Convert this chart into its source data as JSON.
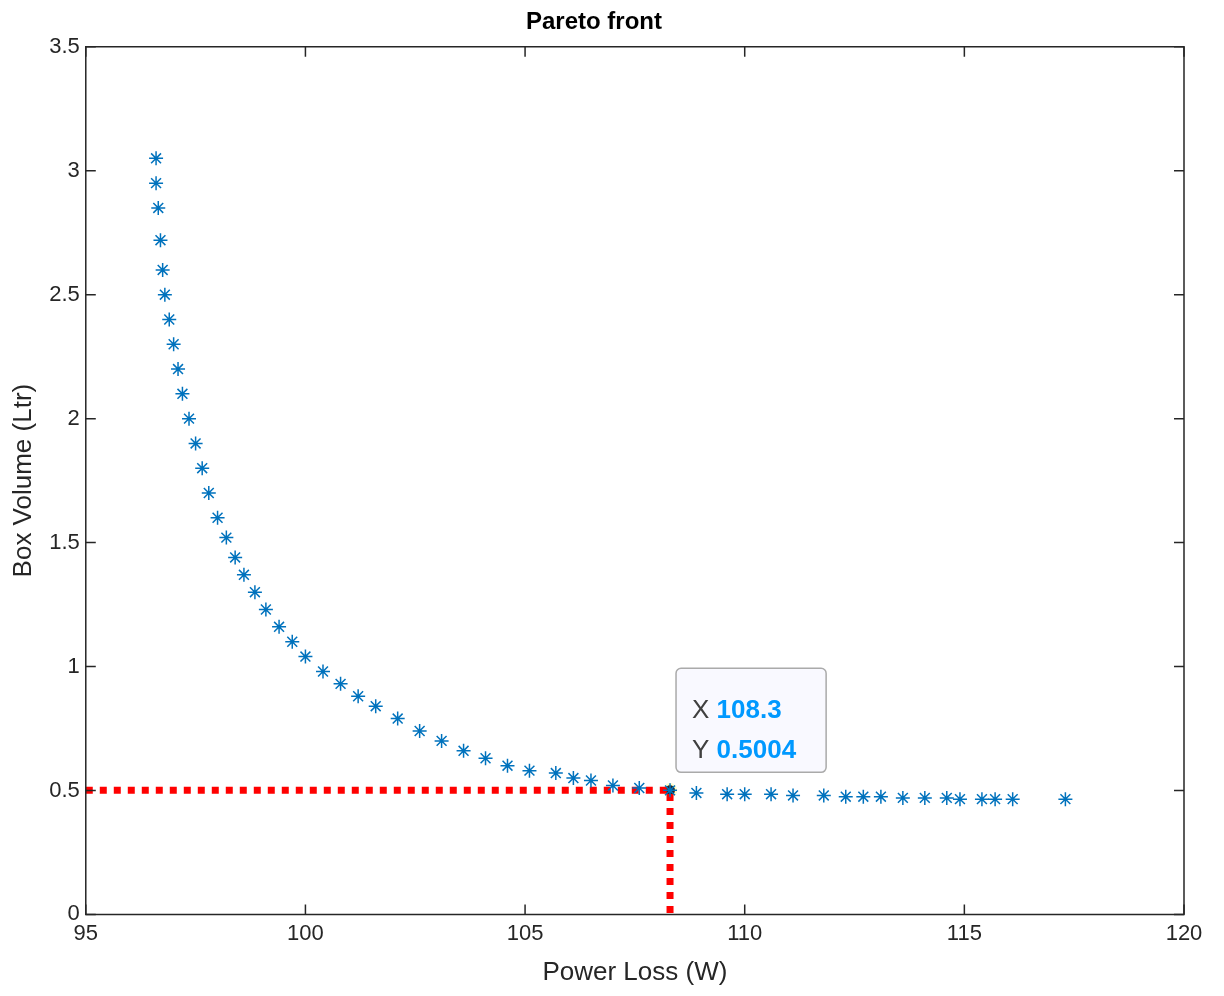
{
  "chart_data": {
    "type": "scatter",
    "title": "Pareto front",
    "xlabel": "Power Loss (W)",
    "ylabel": "Box Volume (Ltr)",
    "xlim": [
      95,
      120
    ],
    "xticks": [
      95,
      100,
      105,
      110,
      115,
      120
    ],
    "ylim": [
      0,
      3.5
    ],
    "yticks": [
      0,
      0.5,
      1,
      1.5,
      2,
      2.5,
      3,
      3.5
    ],
    "grid": false,
    "legend": false,
    "marker": "cross",
    "series": [
      {
        "color": "#0072bd",
        "x": [
          96.6,
          96.6,
          96.65,
          96.7,
          96.75,
          96.8,
          96.9,
          97.0,
          97.1,
          97.2,
          97.35,
          97.5,
          97.65,
          97.8,
          98.0,
          98.2,
          98.4,
          98.6,
          98.85,
          99.1,
          99.4,
          99.7,
          100.0,
          100.4,
          100.8,
          101.2,
          101.6,
          102.1,
          102.6,
          103.1,
          103.6,
          104.1,
          104.6,
          105.1,
          105.7,
          106.1,
          106.5,
          107.0,
          107.6,
          108.3,
          108.9,
          109.6,
          110.0,
          110.6,
          111.1,
          111.8,
          112.3,
          112.7,
          113.1,
          113.6,
          114.1,
          114.6,
          114.9,
          115.4,
          115.7,
          116.1,
          117.3
        ],
        "values": [
          3.05,
          2.95,
          2.85,
          2.72,
          2.6,
          2.5,
          2.4,
          2.3,
          2.2,
          2.1,
          2.0,
          1.9,
          1.8,
          1.7,
          1.6,
          1.52,
          1.44,
          1.37,
          1.3,
          1.23,
          1.16,
          1.1,
          1.04,
          0.98,
          0.93,
          0.88,
          0.84,
          0.79,
          0.74,
          0.7,
          0.66,
          0.63,
          0.6,
          0.58,
          0.57,
          0.55,
          0.54,
          0.52,
          0.51,
          0.5004,
          0.49,
          0.485,
          0.485,
          0.485,
          0.48,
          0.48,
          0.475,
          0.475,
          0.475,
          0.47,
          0.47,
          0.47,
          0.465,
          0.465,
          0.465,
          0.465,
          0.465
        ]
      },
      {
        "type": "line",
        "color": "#ff0000",
        "marker": "none",
        "line_style": "dotted",
        "x": [
          95,
          108.3,
          108.3
        ],
        "values": [
          0.5004,
          0.5004,
          0
        ]
      }
    ],
    "annotations": [
      {
        "text": "X 108.3",
        "x": 108.3,
        "y": 0.5004
      },
      {
        "text": "Y 0.5004",
        "x": 108.3,
        "y": 0.5004
      }
    ]
  }
}
